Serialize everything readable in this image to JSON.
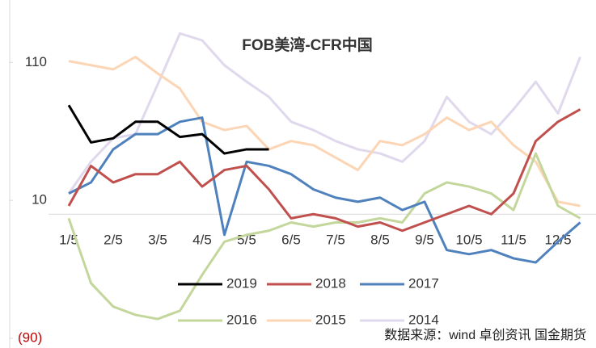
{
  "chart_data": {
    "type": "line",
    "title": "FOB美湾-CFR中国",
    "categories": [
      "1/5",
      null,
      "2/5",
      null,
      "3/5",
      null,
      "4/5",
      null,
      "5/5",
      null,
      "6/5",
      null,
      "7/5",
      null,
      "8/5",
      null,
      "9/5",
      null,
      "10/5",
      null,
      "11/5",
      null,
      "12/5",
      null
    ],
    "series": [
      {
        "name": "2019",
        "color": "#000000",
        "values": [
          79,
          52,
          55,
          67,
          67,
          56,
          58,
          44,
          47,
          47,
          null,
          null,
          null,
          null,
          null,
          null,
          null,
          null,
          null,
          null,
          null,
          null,
          null,
          null
        ]
      },
      {
        "name": "2018",
        "color": "#c0504d",
        "values": [
          6,
          35,
          23,
          29,
          29,
          38,
          20,
          32,
          35,
          18,
          -3,
          0,
          -3,
          -9,
          -6,
          -12,
          -6,
          0,
          6,
          0,
          15,
          53,
          67,
          76
        ]
      },
      {
        "name": "2017",
        "color": "#4f81bd",
        "values": [
          15,
          23,
          47,
          58,
          58,
          67,
          70,
          -15,
          38,
          35,
          29,
          18,
          12,
          9,
          12,
          3,
          9,
          -26,
          -29,
          -26,
          -32,
          -35,
          -20,
          -6
        ]
      },
      {
        "name": "2016",
        "color": "#c3d69b",
        "values": [
          -3,
          -50,
          -67,
          -73,
          -76,
          -70,
          -44,
          -20,
          -15,
          -12,
          -6,
          -9,
          -6,
          -6,
          -3,
          -6,
          15,
          23,
          20,
          15,
          3,
          44,
          6,
          -3
        ]
      },
      {
        "name": "2015",
        "color": "#fcd5b5",
        "values": [
          111,
          108,
          105,
          114,
          102,
          91,
          67,
          61,
          64,
          47,
          53,
          50,
          41,
          32,
          53,
          50,
          58,
          70,
          61,
          67,
          50,
          38,
          9,
          6
        ]
      },
      {
        "name": "2014",
        "color": "#e0d8ec",
        "values": [
          15,
          38,
          55,
          58,
          94,
          131,
          126,
          108,
          96,
          85,
          67,
          61,
          53,
          47,
          44,
          38,
          53,
          85,
          67,
          58,
          76,
          96,
          73,
          114
        ]
      }
    ],
    "ylim": [
      -90,
      150
    ],
    "yticks": [
      110,
      10,
      {
        "value": -90,
        "label": "(90)"
      }
    ],
    "source": "数据来源：wind 卓创资讯 国金期货"
  }
}
